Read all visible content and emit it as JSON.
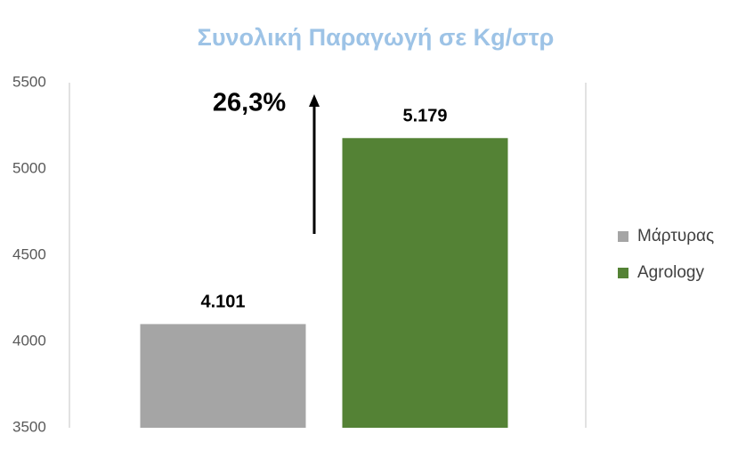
{
  "chart_data": {
    "type": "bar",
    "title": "Συνολική Παραγωγή σε Kg/στρ",
    "annotation": "26,3%",
    "categories": [
      null
    ],
    "series": [
      {
        "name": "Μάρτυρας",
        "color": "#a5a5a5",
        "values": [
          4101
        ],
        "value_labels": [
          "4.101"
        ]
      },
      {
        "name": "Agrology",
        "color": "#548235",
        "values": [
          5179
        ],
        "value_labels": [
          "5.179"
        ]
      }
    ],
    "ylim": [
      3500,
      5500
    ],
    "yticks": [
      3500,
      4000,
      4500,
      5000,
      5500
    ],
    "legend": "right",
    "grid": false
  }
}
